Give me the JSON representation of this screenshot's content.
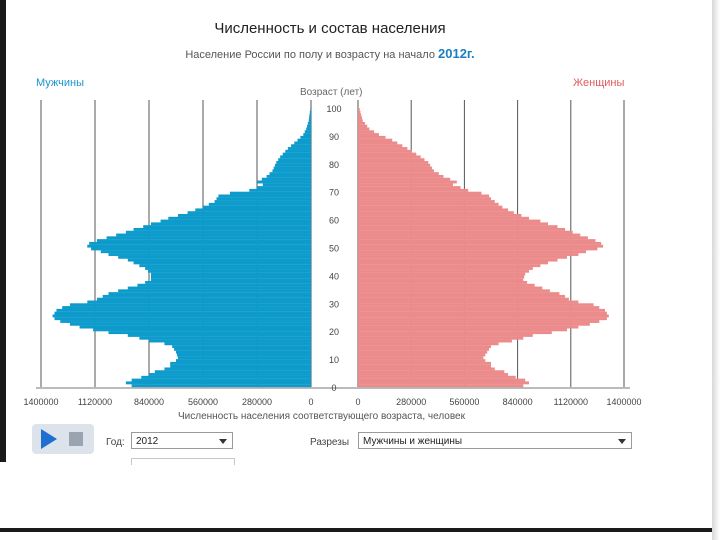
{
  "title": "Численность и состав населения",
  "subtitle_prefix": "Население России по полу и возрасту на начало",
  "subtitle_year": "2012г.",
  "legend_men": "Мужчины",
  "legend_women": "Женщины",
  "age_axis_label": "Возраст (лет)",
  "x_axis_title": "Численность населения соответствующего возраста, человек",
  "controls": {
    "year_label": "Год:",
    "year_value": "2012",
    "slices_label": "Разрезы",
    "slices_value": "Мужчины и женщины"
  },
  "colors": {
    "men": "#0d9bcc",
    "women": "#ec8b8b",
    "accent": "#1a7fc1"
  },
  "icons": {
    "play": "play-icon",
    "stop": "stop-icon",
    "dropdown": "chevron-down-icon"
  },
  "chart_data": {
    "type": "bar",
    "orientation": "horizontal-population-pyramid",
    "x_ticks_left": [
      "1400000",
      "1120000",
      "840000",
      "560000",
      "280000",
      "0"
    ],
    "x_ticks_right": [
      "0",
      "280000",
      "560000",
      "840000",
      "1120000",
      "1400000"
    ],
    "age_ticks": [
      "0",
      "10",
      "20",
      "30",
      "40",
      "50",
      "60",
      "70",
      "80",
      "90",
      "100"
    ],
    "xlim": [
      0,
      1400000
    ],
    "ylim": [
      0,
      100
    ],
    "grid": true,
    "age_points": [
      0,
      1,
      2,
      3,
      4,
      5,
      6,
      7,
      8,
      9,
      10,
      12,
      14,
      15,
      16,
      17,
      18,
      19,
      20,
      21,
      22,
      23,
      24,
      25,
      26,
      27,
      28,
      29,
      30,
      31,
      32,
      33,
      34,
      35,
      36,
      37,
      38,
      40,
      42,
      43,
      44,
      45,
      46,
      47,
      48,
      49,
      50,
      51,
      52,
      53,
      54,
      55,
      56,
      57,
      58,
      59,
      60,
      61,
      62,
      63,
      64,
      65,
      66,
      67,
      68,
      69,
      70,
      71,
      72,
      73,
      75,
      77,
      80,
      82,
      85,
      88,
      90,
      92,
      95,
      100
    ],
    "series": [
      {
        "name": "Мужчины",
        "values": [
          930000,
          960000,
          930000,
          880000,
          840000,
          810000,
          760000,
          730000,
          730000,
          700000,
          690000,
          700000,
          720000,
          760000,
          840000,
          890000,
          950000,
          1050000,
          1130000,
          1200000,
          1250000,
          1300000,
          1330000,
          1340000,
          1330000,
          1320000,
          1290000,
          1250000,
          1160000,
          1110000,
          1080000,
          1050000,
          1000000,
          950000,
          900000,
          860000,
          830000,
          830000,
          860000,
          890000,
          920000,
          950000,
          1000000,
          1050000,
          1090000,
          1140000,
          1160000,
          1150000,
          1110000,
          1060000,
          1010000,
          960000,
          920000,
          870000,
          830000,
          780000,
          740000,
          690000,
          640000,
          600000,
          560000,
          530000,
          500000,
          490000,
          480000,
          420000,
          320000,
          280000,
          250000,
          280000,
          230000,
          200000,
          180000,
          160000,
          120000,
          70000,
          40000,
          25000,
          12000,
          2000
        ]
      },
      {
        "name": "Женщины",
        "values": [
          870000,
          900000,
          880000,
          830000,
          790000,
          770000,
          720000,
          700000,
          700000,
          670000,
          660000,
          680000,
          700000,
          740000,
          810000,
          870000,
          920000,
          1020000,
          1100000,
          1160000,
          1220000,
          1270000,
          1310000,
          1320000,
          1310000,
          1300000,
          1270000,
          1240000,
          1160000,
          1110000,
          1090000,
          1060000,
          1010000,
          970000,
          930000,
          890000,
          870000,
          880000,
          920000,
          960000,
          1000000,
          1050000,
          1100000,
          1160000,
          1200000,
          1260000,
          1290000,
          1280000,
          1250000,
          1210000,
          1170000,
          1130000,
          1090000,
          1050000,
          1000000,
          960000,
          900000,
          860000,
          820000,
          790000,
          760000,
          740000,
          720000,
          700000,
          690000,
          650000,
          580000,
          540000,
          500000,
          520000,
          450000,
          400000,
          370000,
          330000,
          260000,
          180000,
          110000,
          60000,
          25000,
          5000
        ]
      }
    ]
  }
}
